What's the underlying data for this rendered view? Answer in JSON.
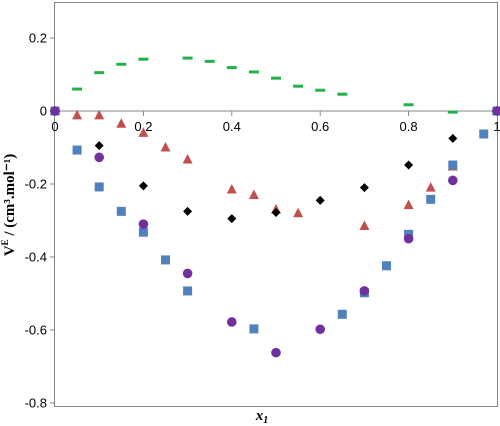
{
  "chart_data": {
    "type": "scatter",
    "xlabel": "x",
    "xlabel_sub": "1",
    "ylabel": "V",
    "ylabel_sup": "E",
    "ylabel_unit": " / (cm³.mol⁻¹)",
    "xlim": [
      0,
      1
    ],
    "ylim": [
      -0.8,
      0.2
    ],
    "x_ticks": [
      0,
      0.2,
      0.4,
      0.6,
      0.8,
      1
    ],
    "x_tick_labels": [
      "0",
      "0.2",
      "0.4",
      "0.6",
      "0.8",
      "1"
    ],
    "y_ticks": [
      -0.8,
      -0.6,
      -0.4,
      -0.2,
      0,
      0.2
    ],
    "y_tick_labels": [
      "-0.8",
      "-0.6",
      "-0.4",
      "-0.2",
      "0",
      "0.2"
    ],
    "grid": false,
    "legend": "none",
    "series": [
      {
        "marker": "dash",
        "color": "#22b14c",
        "x": [
          0,
          0.05,
          0.1,
          0.15,
          0.2,
          0.3,
          0.35,
          0.4,
          0.45,
          0.5,
          0.55,
          0.6,
          0.65,
          0.8,
          0.9,
          1
        ],
        "y": [
          0,
          0.06,
          0.105,
          0.128,
          0.142,
          0.145,
          0.136,
          0.119,
          0.107,
          0.09,
          0.068,
          0.057,
          0.046,
          0.017,
          -0.003,
          0
        ]
      },
      {
        "marker": "triangle",
        "color": "#c0504d",
        "x": [
          0,
          0.05,
          0.1,
          0.15,
          0.2,
          0.25,
          0.3,
          0.4,
          0.45,
          0.5,
          0.55,
          0.7,
          0.8,
          0.85,
          0.9,
          1
        ],
        "y": [
          0,
          -0.012,
          -0.012,
          -0.035,
          -0.06,
          -0.1,
          -0.133,
          -0.215,
          -0.23,
          -0.27,
          -0.28,
          -0.315,
          -0.258,
          -0.21,
          -0.152,
          0
        ]
      },
      {
        "marker": "diamond",
        "color": "#000000",
        "x": [
          0,
          0.1,
          0.2,
          0.3,
          0.4,
          0.5,
          0.6,
          0.7,
          0.8,
          0.9,
          1
        ],
        "y": [
          0,
          -0.095,
          -0.205,
          -0.275,
          -0.295,
          -0.278,
          -0.245,
          -0.21,
          -0.148,
          -0.075,
          0
        ]
      },
      {
        "marker": "square",
        "color": "#4f81bd",
        "x": [
          0,
          0.05,
          0.1,
          0.15,
          0.2,
          0.25,
          0.3,
          0.45,
          0.65,
          0.75,
          0.7,
          0.8,
          0.85,
          0.9,
          0.97,
          1
        ],
        "y": [
          0,
          -0.107,
          -0.208,
          -0.275,
          -0.332,
          -0.408,
          -0.493,
          -0.597,
          -0.557,
          -0.424,
          -0.498,
          -0.338,
          -0.242,
          -0.148,
          -0.063,
          0
        ]
      },
      {
        "marker": "circle",
        "color": "#7030a0",
        "x": [
          0,
          0.1,
          0.2,
          0.3,
          0.4,
          0.5,
          0.6,
          0.7,
          0.8,
          0.9,
          1
        ],
        "y": [
          0,
          -0.127,
          -0.31,
          -0.445,
          -0.578,
          -0.662,
          -0.598,
          -0.493,
          -0.35,
          -0.19,
          0
        ]
      }
    ]
  }
}
